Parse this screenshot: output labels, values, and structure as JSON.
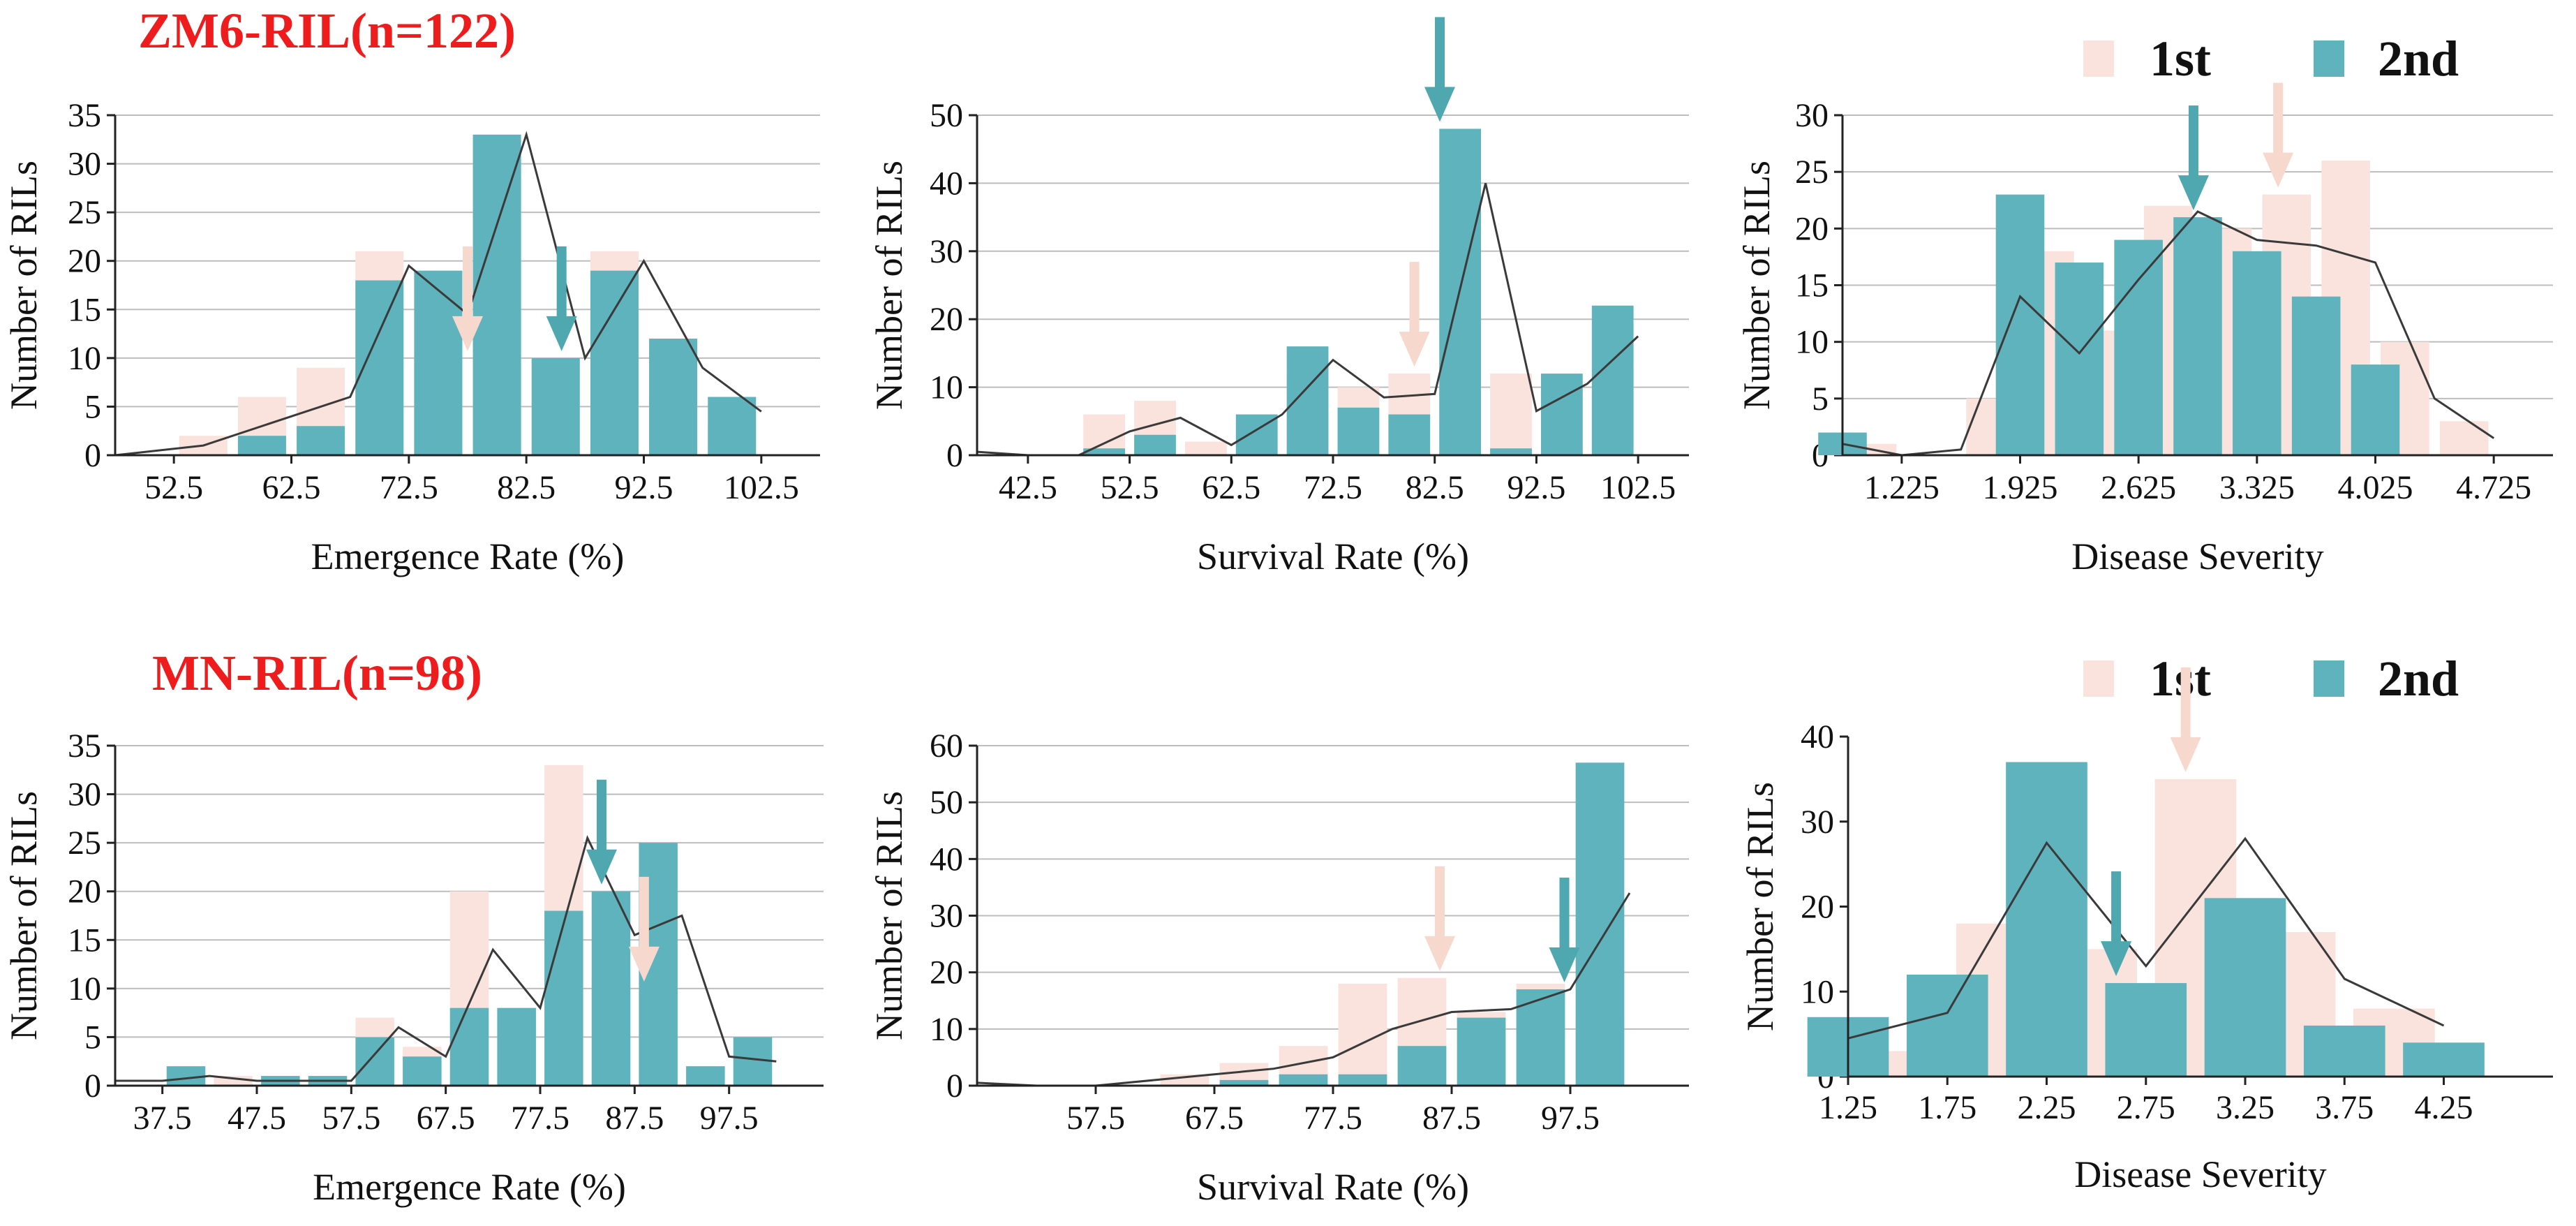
{
  "population_titles": [
    "ZM6-RIL(n=122)",
    "MN-RIL(n=98)"
  ],
  "legend": {
    "first": "1st",
    "second": "2nd",
    "first_color": "#f9e3dc",
    "second_color": "#5fb3bc"
  },
  "colors": {
    "first": "#f9e3dc",
    "second": "#5fb3bc",
    "first_arrow": "#f6d8cd",
    "second_arrow": "#4fa7b0",
    "line": "#3a3a3a",
    "grid": "#bdbdbd",
    "title": "#ee1c1c"
  },
  "chart_data": [
    {
      "type": "bar",
      "population": "ZM6-RIL(n=122)",
      "xlabel": "Emergence Rate (%)",
      "ylabel": "Number of RILs",
      "xlim": [
        47.5,
        107.5
      ],
      "ylim": [
        0,
        35
      ],
      "yticks": [
        0,
        5,
        10,
        15,
        20,
        25,
        30,
        35
      ],
      "xticks": [
        52.5,
        62.5,
        72.5,
        82.5,
        92.5,
        102.5
      ],
      "xtick_labels": [
        "52.5",
        "62.5",
        "72.5",
        "82.5",
        "92.5",
        "102.5"
      ],
      "bin_width": 5,
      "grid": true,
      "series": [
        {
          "name": "1st",
          "x": [
            50,
            55,
            60,
            65,
            70,
            75,
            80,
            85,
            90,
            95,
            100
          ],
          "values": [
            0,
            2,
            6,
            9,
            21,
            10,
            33,
            10,
            21,
            6,
            3
          ]
        },
        {
          "name": "2nd",
          "x": [
            50,
            55,
            60,
            65,
            70,
            75,
            80,
            85,
            90,
            95,
            100,
            105
          ],
          "values": [
            0,
            0,
            2,
            3,
            18,
            19,
            33,
            10,
            19,
            12,
            6,
            0
          ]
        }
      ],
      "line": {
        "x": [
          47.5,
          55,
          62.5,
          67.5,
          72.5,
          77.5,
          82.5,
          87.5,
          92.5,
          97.5,
          102.5
        ],
        "values": [
          0,
          1,
          4,
          6,
          19.5,
          14.5,
          33,
          10,
          20,
          9,
          4.5
        ]
      },
      "arrows": [
        {
          "series": "1st",
          "x": 77.5
        },
        {
          "series": "2nd",
          "x": 85.5
        }
      ]
    },
    {
      "type": "bar",
      "population": "ZM6-RIL(n=122)",
      "xlabel": "Survival Rate (%)",
      "ylabel": "Number of RILs",
      "xlim": [
        37.5,
        107.5
      ],
      "ylim": [
        0,
        50
      ],
      "yticks": [
        0,
        10,
        20,
        30,
        40,
        50
      ],
      "xticks": [
        42.5,
        52.5,
        62.5,
        72.5,
        82.5,
        92.5,
        102.5
      ],
      "xtick_labels": [
        "42.5",
        "52.5",
        "62.5",
        "72.5",
        "82.5",
        "92.5",
        "102.5"
      ],
      "bin_width": 5,
      "grid": true,
      "series": [
        {
          "name": "1st",
          "x": [
            40,
            45,
            50,
            55,
            60,
            65,
            70,
            75,
            80,
            85,
            90,
            95,
            100
          ],
          "values": [
            0,
            0,
            6,
            8,
            2,
            5,
            12,
            10,
            12,
            32,
            12,
            11,
            13
          ]
        },
        {
          "name": "2nd",
          "x": [
            40,
            45,
            50,
            55,
            60,
            65,
            70,
            75,
            80,
            85,
            90,
            95,
            100
          ],
          "values": [
            0,
            0,
            1,
            3,
            0,
            6,
            16,
            7,
            6,
            48,
            1,
            12,
            22
          ]
        }
      ],
      "line": {
        "x": [
          37.5,
          42.5,
          47.5,
          52.5,
          57.5,
          62.5,
          67.5,
          72.5,
          77.5,
          82.5,
          87.5,
          92.5,
          97.5,
          102.5
        ],
        "values": [
          0.5,
          0,
          0,
          3.5,
          5.5,
          1.5,
          6,
          14,
          8.5,
          9,
          40,
          6.5,
          10.5,
          17.5
        ]
      },
      "arrows": [
        {
          "series": "1st",
          "x": 80.5
        },
        {
          "series": "2nd",
          "x": 83
        }
      ]
    },
    {
      "type": "bar",
      "population": "ZM6-RIL(n=122)",
      "xlabel": "Disease Severity",
      "ylabel": "Number of RILs",
      "xlim": [
        0.875,
        5.075
      ],
      "ylim": [
        0,
        30
      ],
      "yticks": [
        0,
        5,
        10,
        15,
        20,
        25,
        30
      ],
      "xticks": [
        1.225,
        1.925,
        2.625,
        3.325,
        4.025,
        4.725
      ],
      "xtick_labels": [
        "1.225",
        "1.925",
        "2.625",
        "3.325",
        "4.025",
        "4.725"
      ],
      "bin_width": 0.35,
      "grid": true,
      "series": [
        {
          "name": "1st",
          "x": [
            1.05,
            1.4,
            1.75,
            2.1,
            2.45,
            2.8,
            3.15,
            3.5,
            3.85,
            4.2,
            4.55
          ],
          "values": [
            1,
            0,
            5,
            18,
            11,
            22,
            20,
            23,
            26,
            10,
            3
          ]
        },
        {
          "name": "2nd",
          "x": [
            0.875,
            1.225,
            1.575,
            1.925,
            2.275,
            2.625,
            2.975,
            3.325,
            3.675,
            4.025
          ],
          "values": [
            2,
            0,
            0,
            23,
            17,
            19,
            21,
            18,
            14,
            8
          ]
        }
      ],
      "line": {
        "x": [
          0.875,
          1.225,
          1.575,
          1.925,
          2.275,
          2.625,
          2.975,
          3.325,
          3.675,
          4.025,
          4.375,
          4.725
        ],
        "values": [
          1,
          0,
          0.5,
          14,
          9,
          15.5,
          21.5,
          19,
          18.5,
          17,
          5,
          1.5
        ]
      },
      "arrows": [
        {
          "series": "1st",
          "x": 3.45
        },
        {
          "series": "2nd",
          "x": 2.95
        }
      ]
    },
    {
      "type": "bar",
      "population": "MN-RIL(n=98)",
      "xlabel": "Emergence Rate (%)",
      "ylabel": "Number of RILs",
      "xlim": [
        32.5,
        107.5
      ],
      "ylim": [
        0,
        35
      ],
      "yticks": [
        0,
        5,
        10,
        15,
        20,
        25,
        30,
        35
      ],
      "xticks": [
        37.5,
        47.5,
        57.5,
        67.5,
        77.5,
        87.5,
        97.5
      ],
      "xtick_labels": [
        "37.5",
        "47.5",
        "57.5",
        "67.5",
        "77.5",
        "87.5",
        "97.5"
      ],
      "bin_width": 5,
      "grid": true,
      "series": [
        {
          "name": "1st",
          "x": [
            35,
            40,
            45,
            50,
            55,
            60,
            65,
            70,
            75,
            80,
            85,
            90,
            95,
            100
          ],
          "values": [
            0,
            0,
            1,
            0,
            0,
            7,
            4,
            20,
            8,
            33,
            11,
            10,
            2,
            0
          ]
        },
        {
          "name": "2nd",
          "x": [
            40,
            45,
            50,
            55,
            60,
            65,
            70,
            75,
            80,
            85,
            90,
            95,
            100,
            105
          ],
          "values": [
            2,
            0,
            1,
            1,
            5,
            3,
            8,
            8,
            18,
            20,
            25,
            2,
            5,
            0
          ]
        }
      ],
      "line": {
        "x": [
          32.5,
          37.5,
          42.5,
          47.5,
          52.5,
          57.5,
          62.5,
          67.5,
          72.5,
          77.5,
          82.5,
          87.5,
          92.5,
          97.5,
          102.5
        ],
        "values": [
          0.5,
          0.5,
          1,
          0.5,
          0.5,
          0.5,
          6,
          3,
          14,
          8,
          25.5,
          15.5,
          17.5,
          3,
          2.5
        ]
      },
      "arrows": [
        {
          "series": "1st",
          "x": 88.5
        },
        {
          "series": "2nd",
          "x": 84
        }
      ]
    },
    {
      "type": "bar",
      "population": "MN-RIL(n=98)",
      "xlabel": "Survival Rate (%)",
      "ylabel": "Number of RILs",
      "xlim": [
        47.5,
        107.5
      ],
      "ylim": [
        0,
        60
      ],
      "yticks": [
        0,
        10,
        20,
        30,
        40,
        50,
        60
      ],
      "xticks": [
        57.5,
        67.5,
        77.5,
        87.5,
        97.5
      ],
      "xtick_labels": [
        "57.5",
        "67.5",
        "77.5",
        "87.5",
        "97.5"
      ],
      "bin_width": 5,
      "grid": true,
      "series": [
        {
          "name": "1st",
          "x": [
            50,
            55,
            60,
            65,
            70,
            75,
            80,
            85,
            90,
            95,
            100
          ],
          "values": [
            0,
            0,
            0,
            2,
            4,
            7,
            18,
            19,
            13,
            18,
            12
          ]
        },
        {
          "name": "2nd",
          "x": [
            50,
            55,
            60,
            65,
            70,
            75,
            80,
            85,
            90,
            95,
            100
          ],
          "values": [
            0,
            0,
            0,
            0,
            1,
            2,
            2,
            7,
            12,
            17,
            57
          ]
        }
      ],
      "line": {
        "x": [
          47.5,
          52.5,
          57.5,
          62.5,
          67.5,
          72.5,
          77.5,
          82.5,
          87.5,
          92.5,
          97.5,
          102.5
        ],
        "values": [
          0.5,
          0,
          0,
          1,
          2,
          3,
          5,
          10,
          13,
          13.5,
          17,
          34
        ]
      },
      "arrows": [
        {
          "series": "1st",
          "x": 86.5
        },
        {
          "series": "2nd",
          "x": 97
        }
      ]
    },
    {
      "type": "bar",
      "population": "MN-RIL(n=98)",
      "xlabel": "Disease Severity",
      "ylabel": "Number of RILs",
      "xlim": [
        1.25,
        4.8
      ],
      "ylim": [
        0,
        40
      ],
      "yticks": [
        0,
        10,
        20,
        30,
        40
      ],
      "xticks": [
        1.25,
        1.75,
        2.25,
        2.75,
        3.25,
        3.75,
        4.25
      ],
      "xtick_labels": [
        "1.25",
        "1.75",
        "2.25",
        "2.75",
        "3.25",
        "3.75",
        "4.25"
      ],
      "bin_width": 0.5,
      "grid": false,
      "series": [
        {
          "name": "1st",
          "x": [
            1.5,
            2.0,
            2.5,
            3.0,
            3.5,
            4.0
          ],
          "values": [
            3,
            18,
            15,
            35,
            17,
            8
          ]
        },
        {
          "name": "2nd",
          "x": [
            1.25,
            1.75,
            2.25,
            2.75,
            3.25,
            3.75,
            4.25
          ],
          "values": [
            7,
            12,
            37,
            11,
            21,
            6,
            4
          ]
        }
      ],
      "line": {
        "x": [
          1.25,
          1.75,
          2.25,
          2.75,
          3.25,
          3.75,
          4.25
        ],
        "values": [
          4.5,
          7.5,
          27.5,
          13,
          28,
          11.5,
          6
        ]
      },
      "arrows": [
        {
          "series": "1st",
          "x": 2.95
        },
        {
          "series": "2nd",
          "x": 2.6
        }
      ]
    }
  ]
}
